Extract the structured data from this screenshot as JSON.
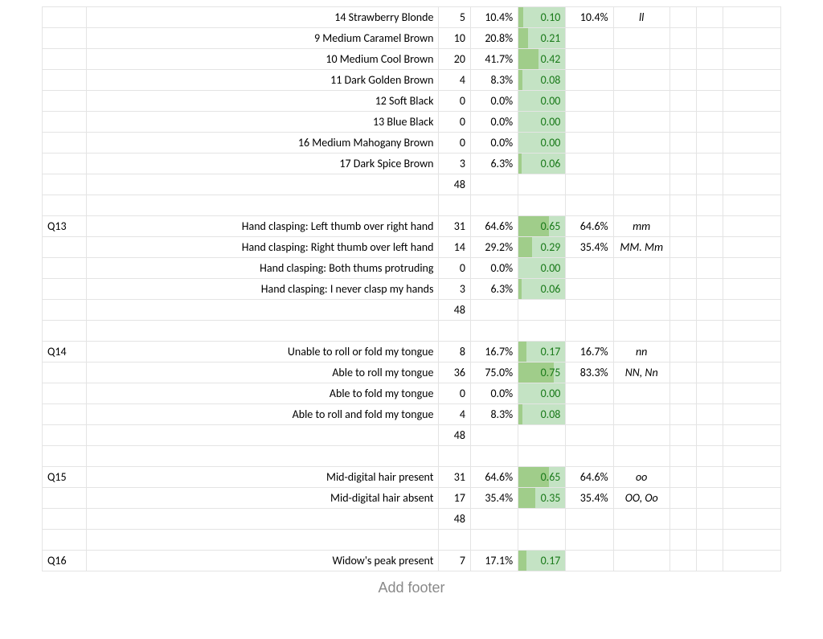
{
  "colors": {
    "bar_base": "#c4e3c4",
    "bar_full": "#a0cd8a",
    "bar_text": "#1a7a1a",
    "grid": "#e4e4e4",
    "footer": "#8a8a8a",
    "text": "#000000"
  },
  "footer_text": "Add footer",
  "columns": [
    "q",
    "desc",
    "n",
    "pct",
    "bar",
    "pct2",
    "geno",
    "x",
    "y",
    "z"
  ],
  "rows": [
    {
      "q": "",
      "desc": "14 Strawberry Blonde",
      "n": "5",
      "pct": "10.4%",
      "bar": "0.10",
      "bar_f": 0.1,
      "pct2": "10.4%",
      "geno": "ll"
    },
    {
      "q": "",
      "desc": "9 Medium Caramel Brown",
      "n": "10",
      "pct": "20.8%",
      "bar": "0.21",
      "bar_f": 0.21,
      "pct2": "",
      "geno": ""
    },
    {
      "q": "",
      "desc": "10 Medium Cool Brown",
      "n": "20",
      "pct": "41.7%",
      "bar": "0.42",
      "bar_f": 0.42,
      "pct2": "",
      "geno": ""
    },
    {
      "q": "",
      "desc": "11 Dark Golden Brown",
      "n": "4",
      "pct": "8.3%",
      "bar": "0.08",
      "bar_f": 0.08,
      "pct2": "",
      "geno": ""
    },
    {
      "q": "",
      "desc": "12 Soft Black",
      "n": "0",
      "pct": "0.0%",
      "bar": "0.00",
      "bar_f": 0.0,
      "pct2": "",
      "geno": ""
    },
    {
      "q": "",
      "desc": "13 Blue Black",
      "n": "0",
      "pct": "0.0%",
      "bar": "0.00",
      "bar_f": 0.0,
      "pct2": "",
      "geno": ""
    },
    {
      "q": "",
      "desc": "16 Medium Mahogany Brown",
      "n": "0",
      "pct": "0.0%",
      "bar": "0.00",
      "bar_f": 0.0,
      "pct2": "",
      "geno": ""
    },
    {
      "q": "",
      "desc": "17 Dark Spice Brown",
      "n": "3",
      "pct": "6.3%",
      "bar": "0.06",
      "bar_f": 0.06,
      "pct2": "",
      "geno": ""
    },
    {
      "q": "",
      "desc": "",
      "n": "48",
      "pct": "",
      "bar": "",
      "bar_f": null,
      "pct2": "",
      "geno": "",
      "total": true
    },
    {
      "blank": true
    },
    {
      "q": "Q13",
      "desc": "Hand clasping: Left thumb over right hand",
      "n": "31",
      "pct": "64.6%",
      "bar": "0.65",
      "bar_f": 0.65,
      "pct2": "64.6%",
      "geno": "mm"
    },
    {
      "q": "",
      "desc": "Hand clasping: Right thumb over left hand",
      "n": "14",
      "pct": "29.2%",
      "bar": "0.29",
      "bar_f": 0.29,
      "pct2": "35.4%",
      "geno": "MM. Mm"
    },
    {
      "q": "",
      "desc": "Hand clasping: Both thums protruding",
      "n": "0",
      "pct": "0.0%",
      "bar": "0.00",
      "bar_f": 0.0,
      "pct2": "",
      "geno": ""
    },
    {
      "q": "",
      "desc": "Hand clasping: I never clasp my hands",
      "n": "3",
      "pct": "6.3%",
      "bar": "0.06",
      "bar_f": 0.06,
      "pct2": "",
      "geno": ""
    },
    {
      "q": "",
      "desc": "",
      "n": "48",
      "pct": "",
      "bar": "",
      "bar_f": null,
      "pct2": "",
      "geno": "",
      "total": true
    },
    {
      "blank": true
    },
    {
      "q": "Q14",
      "desc": "Unable to roll or fold my tongue",
      "n": "8",
      "pct": "16.7%",
      "bar": "0.17",
      "bar_f": 0.17,
      "pct2": "16.7%",
      "geno": "nn"
    },
    {
      "q": "",
      "desc": "Able to roll my tongue",
      "n": "36",
      "pct": "75.0%",
      "bar": "0.75",
      "bar_f": 0.75,
      "pct2": "83.3%",
      "geno": "NN, Nn"
    },
    {
      "q": "",
      "desc": "Able to fold my tongue",
      "n": "0",
      "pct": "0.0%",
      "bar": "0.00",
      "bar_f": 0.0,
      "pct2": "",
      "geno": ""
    },
    {
      "q": "",
      "desc": "Able to roll and fold my tongue",
      "n": "4",
      "pct": "8.3%",
      "bar": "0.08",
      "bar_f": 0.08,
      "pct2": "",
      "geno": ""
    },
    {
      "q": "",
      "desc": "",
      "n": "48",
      "pct": "",
      "bar": "",
      "bar_f": null,
      "pct2": "",
      "geno": "",
      "total": true
    },
    {
      "blank": true
    },
    {
      "q": "Q15",
      "desc": "Mid-digital hair present",
      "n": "31",
      "pct": "64.6%",
      "bar": "0.65",
      "bar_f": 0.65,
      "pct2": "64.6%",
      "geno": "oo"
    },
    {
      "q": "",
      "desc": "Mid-digital hair absent",
      "n": "17",
      "pct": "35.4%",
      "bar": "0.35",
      "bar_f": 0.35,
      "pct2": "35.4%",
      "geno": "OO, Oo"
    },
    {
      "q": "",
      "desc": "",
      "n": "48",
      "pct": "",
      "bar": "",
      "bar_f": null,
      "pct2": "",
      "geno": "",
      "total": true
    },
    {
      "blank": true
    },
    {
      "q": "Q16",
      "desc": "Widow's peak present",
      "n": "7",
      "pct": "17.1%",
      "bar": "0.17",
      "bar_f": 0.17,
      "pct2": "",
      "geno": ""
    }
  ]
}
